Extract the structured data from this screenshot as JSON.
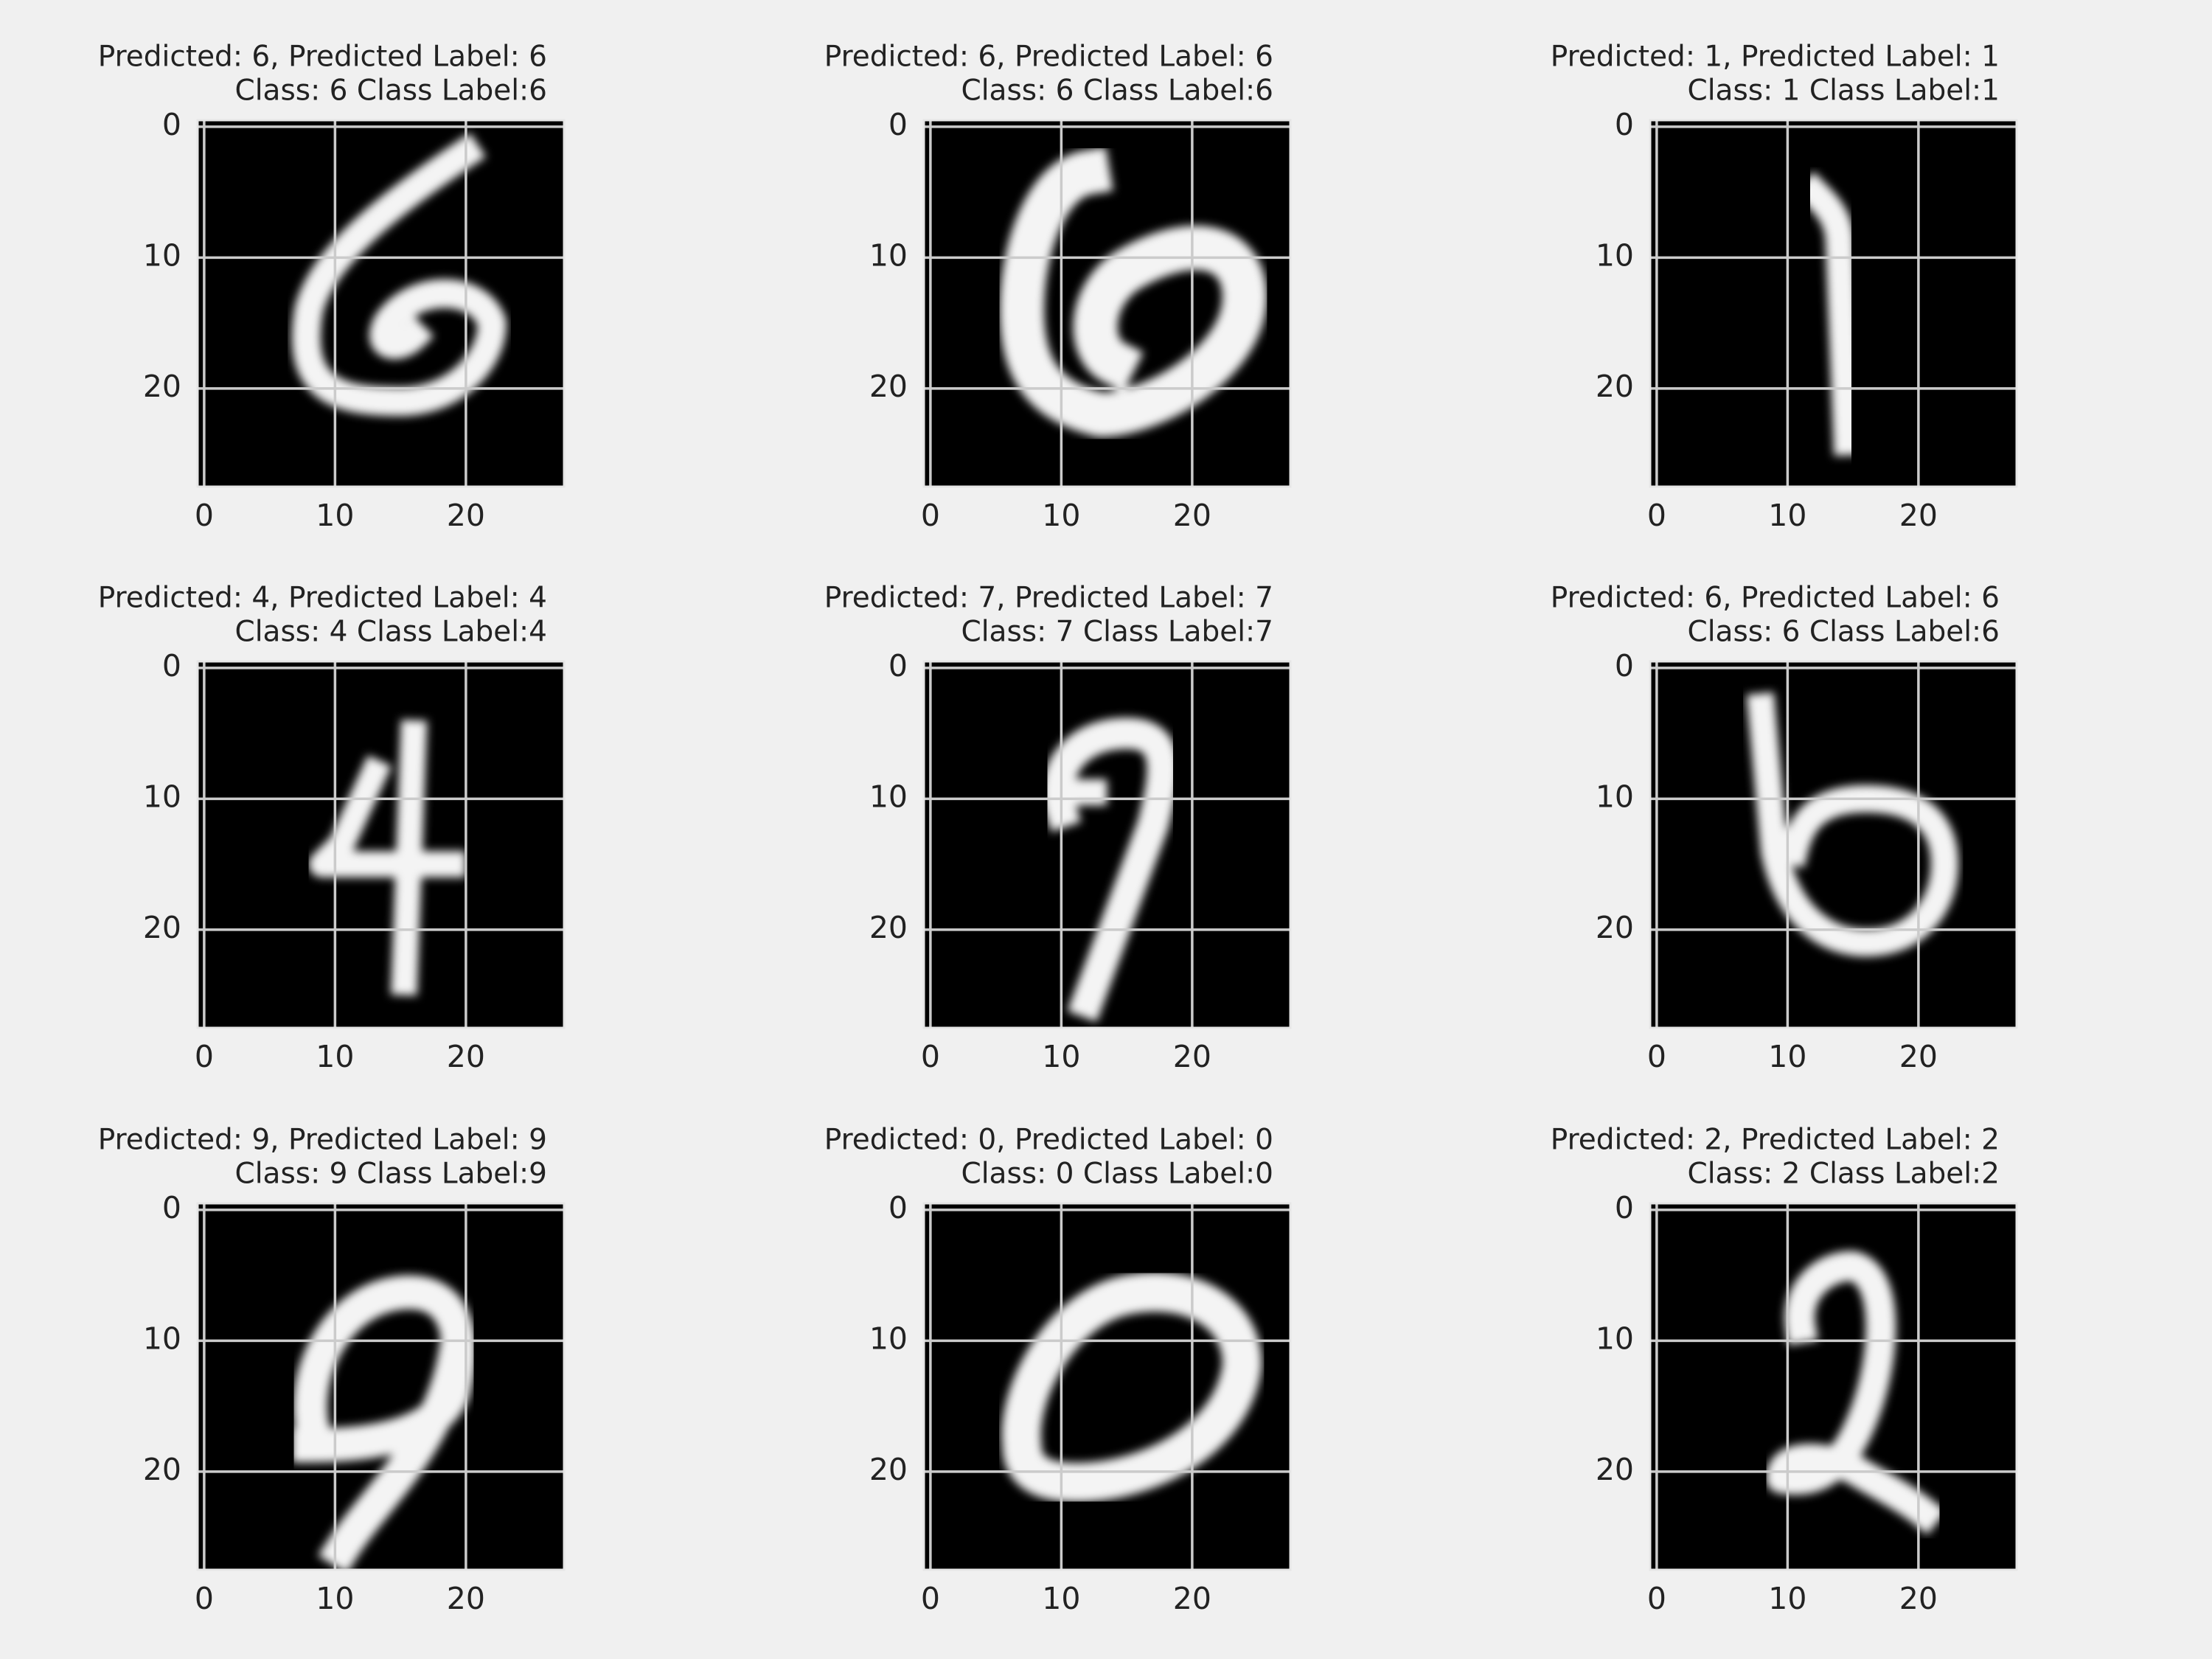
{
  "chart_data": [
    {
      "type": "image",
      "title": [
        "Predicted: 6, Predicted Label: 6",
        "Class: 6 Class Label:6"
      ],
      "xlim": [
        -0.5,
        27.5
      ],
      "ylim": [
        27.5,
        -0.5
      ],
      "xticks": [
        0,
        10,
        20
      ],
      "yticks": [
        0,
        10,
        20
      ],
      "grid": true
    },
    {
      "type": "image",
      "title": [
        "Predicted: 6, Predicted Label: 6",
        "Class: 6 Class Label:6"
      ],
      "xlim": [
        -0.5,
        27.5
      ],
      "ylim": [
        27.5,
        -0.5
      ],
      "xticks": [
        0,
        10,
        20
      ],
      "yticks": [
        0,
        10,
        20
      ],
      "grid": true
    },
    {
      "type": "image",
      "title": [
        "Predicted: 1, Predicted Label: 1",
        "Class: 1 Class Label:1"
      ],
      "xlim": [
        -0.5,
        27.5
      ],
      "ylim": [
        27.5,
        -0.5
      ],
      "xticks": [
        0,
        10,
        20
      ],
      "yticks": [
        0,
        10,
        20
      ],
      "grid": true
    },
    {
      "type": "image",
      "title": [
        "Predicted: 4, Predicted Label: 4",
        "Class: 4 Class Label:4"
      ],
      "xlim": [
        -0.5,
        27.5
      ],
      "ylim": [
        27.5,
        -0.5
      ],
      "xticks": [
        0,
        10,
        20
      ],
      "yticks": [
        0,
        10,
        20
      ],
      "grid": true
    },
    {
      "type": "image",
      "title": [
        "Predicted: 7, Predicted Label: 7",
        "Class: 7 Class Label:7"
      ],
      "xlim": [
        -0.5,
        27.5
      ],
      "ylim": [
        27.5,
        -0.5
      ],
      "xticks": [
        0,
        10,
        20
      ],
      "yticks": [
        0,
        10,
        20
      ],
      "grid": true
    },
    {
      "type": "image",
      "title": [
        "Predicted: 6, Predicted Label: 6",
        "Class: 6 Class Label:6"
      ],
      "xlim": [
        -0.5,
        27.5
      ],
      "ylim": [
        27.5,
        -0.5
      ],
      "xticks": [
        0,
        10,
        20
      ],
      "yticks": [
        0,
        10,
        20
      ],
      "grid": true
    },
    {
      "type": "image",
      "title": [
        "Predicted: 9, Predicted Label: 9",
        "Class: 9 Class Label:9"
      ],
      "xlim": [
        -0.5,
        27.5
      ],
      "ylim": [
        27.5,
        -0.5
      ],
      "xticks": [
        0,
        10,
        20
      ],
      "yticks": [
        0,
        10,
        20
      ],
      "grid": true
    },
    {
      "type": "image",
      "title": [
        "Predicted: 0, Predicted Label: 0",
        "Class: 0 Class Label:0"
      ],
      "xlim": [
        -0.5,
        27.5
      ],
      "ylim": [
        27.5,
        -0.5
      ],
      "xticks": [
        0,
        10,
        20
      ],
      "yticks": [
        0,
        10,
        20
      ],
      "grid": true
    },
    {
      "type": "image",
      "title": [
        "Predicted: 2, Predicted Label: 2",
        "Class: 2 Class Label:2"
      ],
      "xlim": [
        -0.5,
        27.5
      ],
      "ylim": [
        27.5,
        -0.5
      ],
      "xticks": [
        0,
        10,
        20
      ],
      "yticks": [
        0,
        10,
        20
      ],
      "grid": true
    }
  ]
}
